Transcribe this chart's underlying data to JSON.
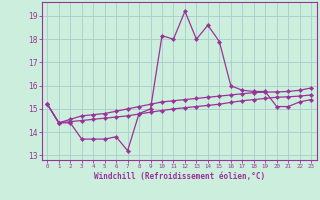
{
  "xlabel": "Windchill (Refroidissement éolien,°C)",
  "background_color": "#cceedd",
  "grid_color": "#aacccc",
  "line_color": "#993399",
  "x_values": [
    0,
    1,
    2,
    3,
    4,
    5,
    6,
    7,
    8,
    9,
    10,
    11,
    12,
    13,
    14,
    15,
    16,
    17,
    18,
    19,
    20,
    21,
    22,
    23
  ],
  "line1_y": [
    15.2,
    14.4,
    14.4,
    13.7,
    13.7,
    13.7,
    13.8,
    13.2,
    14.8,
    15.0,
    18.15,
    18.0,
    19.2,
    18.0,
    18.6,
    17.9,
    16.0,
    15.8,
    15.75,
    15.75,
    15.1,
    15.1,
    15.3,
    15.4
  ],
  "line2_y": [
    15.2,
    14.4,
    14.55,
    14.7,
    14.75,
    14.8,
    14.9,
    15.0,
    15.1,
    15.2,
    15.3,
    15.35,
    15.4,
    15.45,
    15.5,
    15.55,
    15.6,
    15.65,
    15.7,
    15.72,
    15.73,
    15.75,
    15.8,
    15.9
  ],
  "line3_y": [
    15.2,
    14.4,
    14.45,
    14.5,
    14.55,
    14.6,
    14.65,
    14.7,
    14.78,
    14.86,
    14.93,
    15.0,
    15.05,
    15.1,
    15.15,
    15.2,
    15.28,
    15.35,
    15.4,
    15.45,
    15.5,
    15.52,
    15.55,
    15.6
  ],
  "ylim": [
    12.8,
    19.6
  ],
  "xlim": [
    -0.5,
    23.5
  ],
  "yticks": [
    13,
    14,
    15,
    16,
    17,
    18,
    19
  ],
  "xticks": [
    0,
    1,
    2,
    3,
    4,
    5,
    6,
    7,
    8,
    9,
    10,
    11,
    12,
    13,
    14,
    15,
    16,
    17,
    18,
    19,
    20,
    21,
    22,
    23
  ]
}
